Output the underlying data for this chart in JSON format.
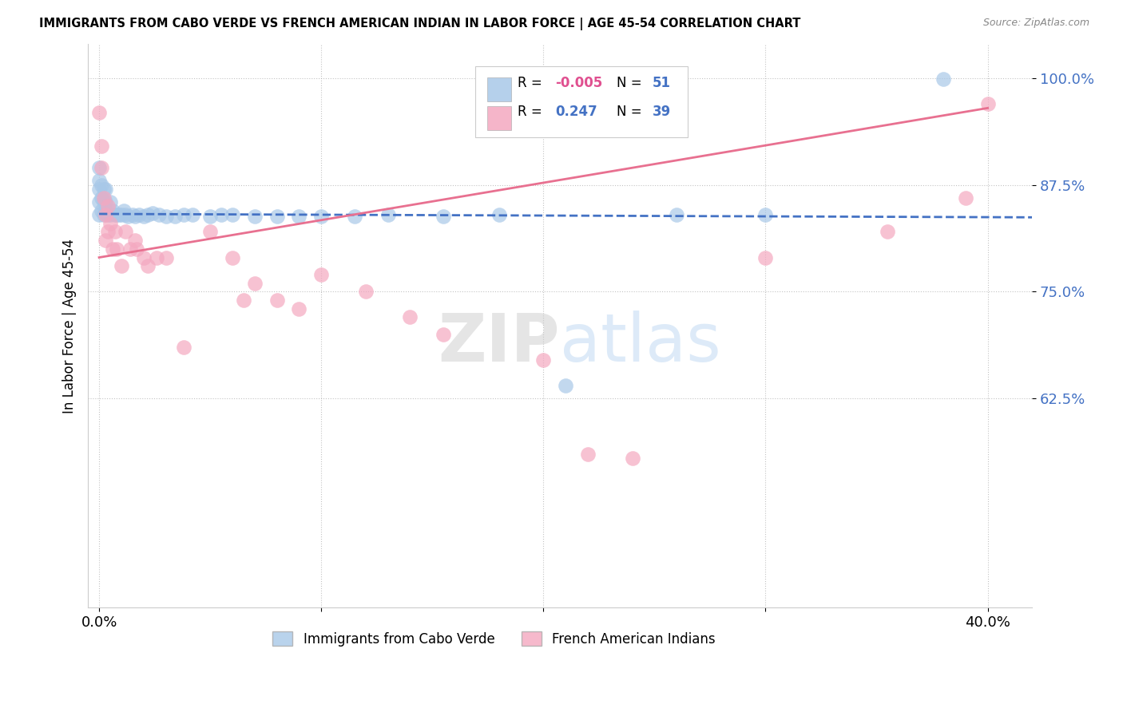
{
  "title": "IMMIGRANTS FROM CABO VERDE VS FRENCH AMERICAN INDIAN IN LABOR FORCE | AGE 45-54 CORRELATION CHART",
  "source": "Source: ZipAtlas.com",
  "ylabel": "In Labor Force | Age 45-54",
  "blue_R": -0.005,
  "blue_N": 51,
  "pink_R": 0.247,
  "pink_N": 39,
  "blue_color": "#A8C8E8",
  "pink_color": "#F4A8C0",
  "blue_line_color": "#4472C4",
  "pink_line_color": "#E87090",
  "background_color": "#FFFFFF",
  "xlim": [
    -0.005,
    0.42
  ],
  "ylim": [
    0.38,
    1.04
  ],
  "ytick_vals": [
    0.625,
    0.75,
    0.875,
    1.0
  ],
  "ytick_labels": [
    "62.5%",
    "75.0%",
    "87.5%",
    "100.0%"
  ],
  "xtick_vals": [
    0.0,
    0.1,
    0.2,
    0.3,
    0.4
  ],
  "xtick_labels": [
    "0.0%",
    "",
    "",
    "",
    "40.0%"
  ],
  "blue_x": [
    0.0,
    0.0,
    0.0,
    0.0,
    0.0,
    0.001,
    0.001,
    0.001,
    0.002,
    0.002,
    0.002,
    0.003,
    0.003,
    0.003,
    0.004,
    0.005,
    0.005,
    0.006,
    0.007,
    0.008,
    0.009,
    0.01,
    0.011,
    0.012,
    0.013,
    0.015,
    0.016,
    0.018,
    0.02,
    0.022,
    0.024,
    0.027,
    0.03,
    0.034,
    0.038,
    0.042,
    0.05,
    0.055,
    0.06,
    0.07,
    0.08,
    0.09,
    0.1,
    0.115,
    0.13,
    0.155,
    0.18,
    0.21,
    0.26,
    0.3,
    0.38
  ],
  "blue_y": [
    0.84,
    0.855,
    0.87,
    0.88,
    0.895,
    0.845,
    0.86,
    0.875,
    0.84,
    0.855,
    0.87,
    0.845,
    0.855,
    0.87,
    0.84,
    0.84,
    0.855,
    0.845,
    0.84,
    0.84,
    0.84,
    0.84,
    0.845,
    0.84,
    0.838,
    0.84,
    0.838,
    0.84,
    0.838,
    0.84,
    0.842,
    0.84,
    0.838,
    0.838,
    0.84,
    0.84,
    0.838,
    0.84,
    0.84,
    0.838,
    0.838,
    0.838,
    0.838,
    0.838,
    0.84,
    0.838,
    0.84,
    0.64,
    0.84,
    0.84,
    0.999
  ],
  "pink_x": [
    0.0,
    0.001,
    0.001,
    0.002,
    0.003,
    0.003,
    0.004,
    0.004,
    0.005,
    0.006,
    0.007,
    0.008,
    0.01,
    0.012,
    0.014,
    0.016,
    0.017,
    0.02,
    0.022,
    0.026,
    0.03,
    0.038,
    0.05,
    0.06,
    0.065,
    0.07,
    0.08,
    0.09,
    0.1,
    0.12,
    0.14,
    0.155,
    0.2,
    0.22,
    0.24,
    0.3,
    0.355,
    0.39,
    0.4
  ],
  "pink_y": [
    0.96,
    0.92,
    0.895,
    0.86,
    0.84,
    0.81,
    0.85,
    0.82,
    0.83,
    0.8,
    0.82,
    0.8,
    0.78,
    0.82,
    0.8,
    0.81,
    0.8,
    0.79,
    0.78,
    0.79,
    0.79,
    0.685,
    0.82,
    0.79,
    0.74,
    0.76,
    0.74,
    0.73,
    0.77,
    0.75,
    0.72,
    0.7,
    0.67,
    0.56,
    0.555,
    0.79,
    0.82,
    0.86,
    0.97
  ]
}
